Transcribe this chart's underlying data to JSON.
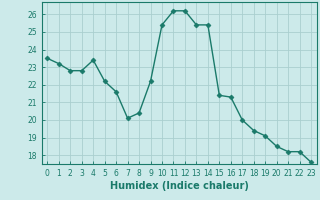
{
  "x": [
    0,
    1,
    2,
    3,
    4,
    5,
    6,
    7,
    8,
    9,
    10,
    11,
    12,
    13,
    14,
    15,
    16,
    17,
    18,
    19,
    20,
    21,
    22,
    23
  ],
  "y": [
    23.5,
    23.2,
    22.8,
    22.8,
    23.4,
    22.2,
    21.6,
    20.1,
    20.4,
    22.2,
    25.4,
    26.2,
    26.2,
    25.4,
    25.4,
    21.4,
    21.3,
    20.0,
    19.4,
    19.1,
    18.5,
    18.2,
    18.2,
    17.6
  ],
  "line_color": "#1a7a6a",
  "marker": "D",
  "marker_size": 2.5,
  "bg_color": "#cceaea",
  "grid_color": "#aacfcf",
  "xlabel": "Humidex (Indice chaleur)",
  "xlim": [
    -0.5,
    23.5
  ],
  "ylim": [
    17.5,
    26.7
  ],
  "yticks": [
    18,
    19,
    20,
    21,
    22,
    23,
    24,
    25,
    26
  ],
  "xticks": [
    0,
    1,
    2,
    3,
    4,
    5,
    6,
    7,
    8,
    9,
    10,
    11,
    12,
    13,
    14,
    15,
    16,
    17,
    18,
    19,
    20,
    21,
    22,
    23
  ],
  "tick_color": "#1a7a6a",
  "axis_color": "#1a7a6a",
  "label_fontsize": 7,
  "tick_fontsize": 5.5
}
